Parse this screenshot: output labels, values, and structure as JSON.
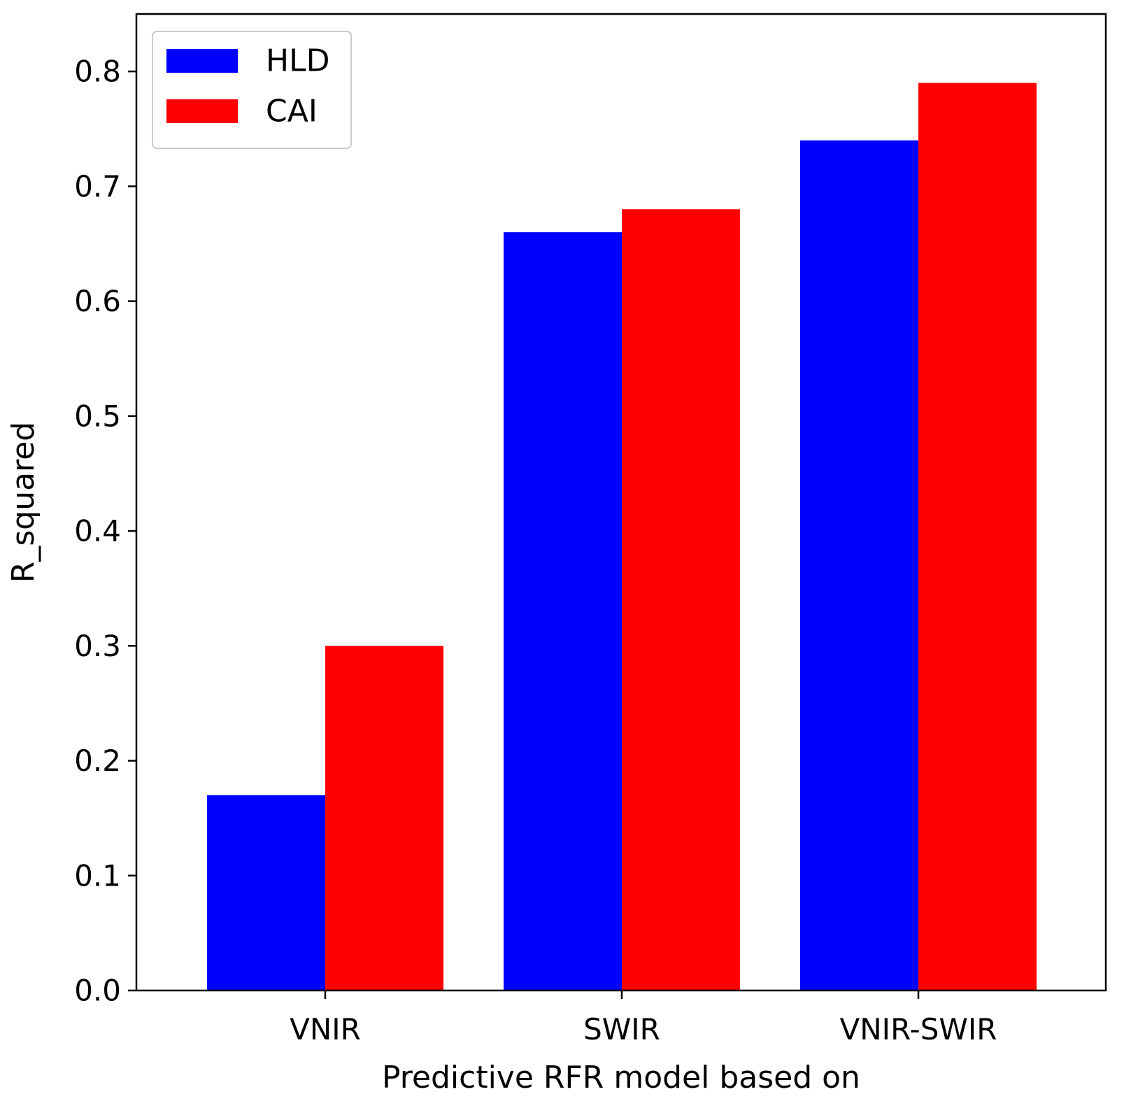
{
  "chart_data": {
    "type": "bar",
    "title": "",
    "xlabel": "Predictive RFR model based on",
    "ylabel": "R_squared",
    "categories": [
      "VNIR",
      "SWIR",
      "VNIR-SWIR"
    ],
    "series": [
      {
        "name": "HLD",
        "color": "#0000ff",
        "values": [
          0.17,
          0.66,
          0.74
        ]
      },
      {
        "name": "CAI",
        "color": "#ff0000",
        "values": [
          0.3,
          0.68,
          0.79
        ]
      }
    ],
    "ylim": [
      0.0,
      0.85
    ],
    "yticks": [
      0.0,
      0.1,
      0.2,
      0.3,
      0.4,
      0.5,
      0.6,
      0.7,
      0.8
    ],
    "ytick_labels": [
      "0.0",
      "0.1",
      "0.2",
      "0.3",
      "0.4",
      "0.5",
      "0.6",
      "0.7",
      "0.8"
    ],
    "grid": false,
    "legend_position": "upper-left"
  }
}
